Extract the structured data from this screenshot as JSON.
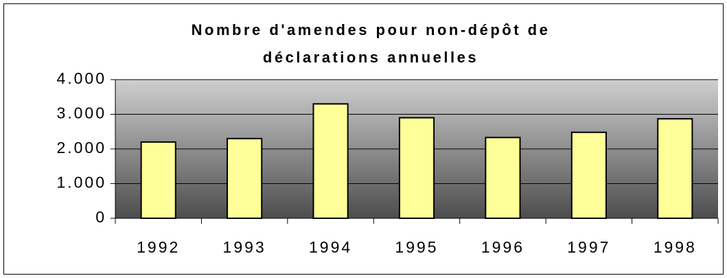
{
  "chart_data": {
    "type": "bar",
    "title": [
      "Nombre d'amendes pour non-dépôt de",
      "déclarations annuelles"
    ],
    "categories": [
      "1992",
      "1993",
      "1994",
      "1995",
      "1996",
      "1997",
      "1998"
    ],
    "values": [
      2200,
      2300,
      3300,
      2900,
      2330,
      2480,
      2870
    ],
    "color": "#ffff99",
    "ylim": [
      0,
      4000
    ],
    "yticks": [
      0,
      {
        "value": 1000,
        "label": "1.000"
      },
      {
        "value": 2000,
        "label": "2.000"
      },
      {
        "value": 3000,
        "label": "3.000"
      },
      {
        "value": 4000,
        "label": "4.000"
      }
    ],
    "grid": true
  }
}
